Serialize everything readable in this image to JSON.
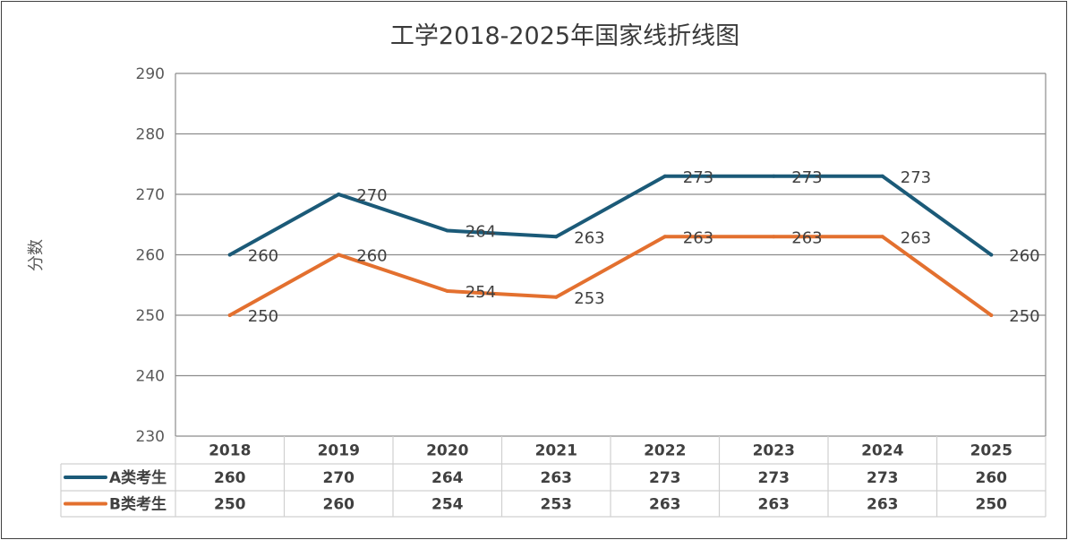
{
  "chart_data": {
    "type": "line",
    "title": "工学2018-2025年国家线折线图",
    "xlabel": "",
    "ylabel": "分数",
    "categories": [
      "2018",
      "2019",
      "2020",
      "2021",
      "2022",
      "2023",
      "2024",
      "2025"
    ],
    "ylim": [
      230,
      290
    ],
    "yticks": [
      230,
      240,
      250,
      260,
      270,
      280,
      290
    ],
    "grid": true,
    "legend": "data-table",
    "series": [
      {
        "name": "A类考生",
        "color": "#1b5a78",
        "values": [
          260,
          270,
          264,
          263,
          273,
          273,
          273,
          260
        ]
      },
      {
        "name": "B类考生",
        "color": "#e3702f",
        "values": [
          250,
          260,
          254,
          253,
          263,
          263,
          263,
          250
        ]
      }
    ]
  }
}
